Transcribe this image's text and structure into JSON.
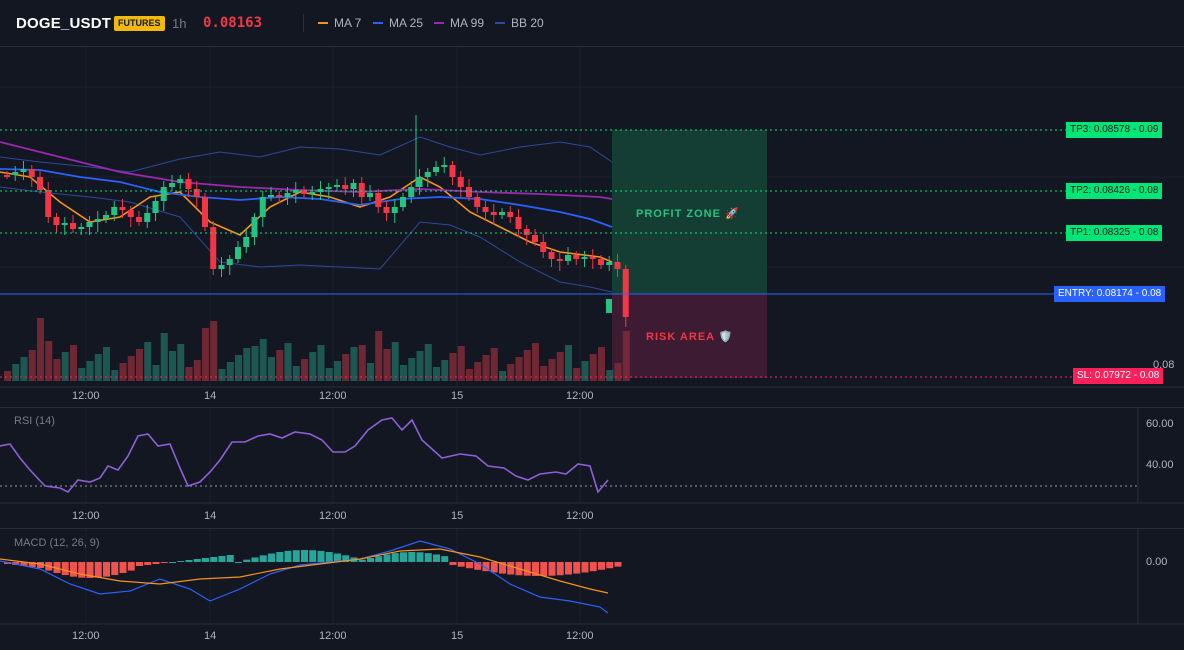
{
  "header": {
    "symbol": "DOGE_USDT",
    "badge": "FUTURES",
    "timeframe": "1h",
    "price": "0.08163",
    "indicators": [
      {
        "label": "MA 7",
        "color": "#f7931a"
      },
      {
        "label": "MA 25",
        "color": "#2962ff"
      },
      {
        "label": "MA 99",
        "color": "#9c27b0"
      },
      {
        "label": "BB 20",
        "color": "#2c4a9a"
      }
    ]
  },
  "trade_levels": {
    "tp3": "TP3: 0.08578",
    "tp2": "TP2: 0.08426",
    "tp1": "TP1: 0.08325",
    "entry": "ENTRY: 0.08174",
    "sl": "SL: 0.07972",
    "tp3_axis": "- 0.09",
    "tp2_axis": "- 0.08",
    "tp1_axis": "- 0.08",
    "entry_axis": "- 0.08",
    "sl_axis": "- 0.08",
    "price_axis_label": "0.08"
  },
  "zones": {
    "profit": "PROFIT ZONE 🚀",
    "risk": "RISK AREA 🛡️"
  },
  "time_axis": [
    "12:00",
    "14",
    "12:00",
    "15",
    "12:00"
  ],
  "rsi": {
    "title": "RSI (14)",
    "ticks": [
      "60.00",
      "40.00"
    ]
  },
  "macd": {
    "title": "MACD (12, 26, 9)",
    "ticks": [
      "0.00"
    ]
  },
  "colors": {
    "up": "#26c281",
    "down": "#f23645",
    "profit_fill": "#143d34",
    "risk_fill": "#3d1c33",
    "tp_tag": "#00e676",
    "entry_tag": "#2962ff",
    "sl_tag": "#ff1f5a"
  }
}
